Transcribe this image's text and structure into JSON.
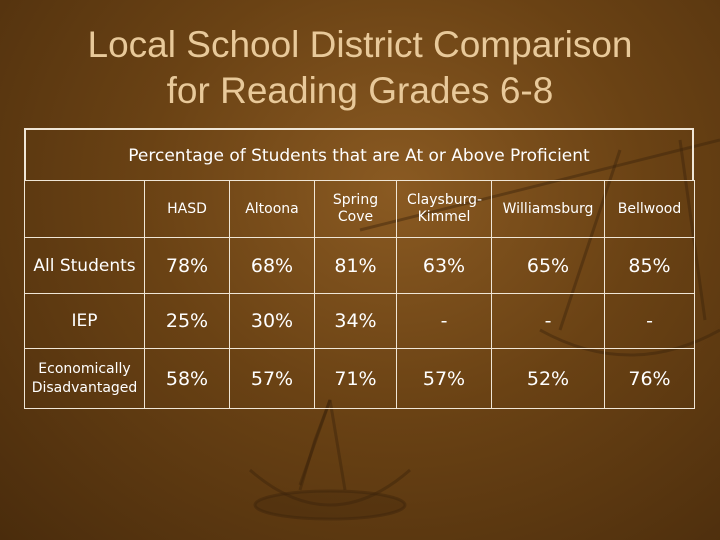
{
  "slide": {
    "title_line1": "Local School District Comparison",
    "title_line2": "for Reading Grades 6-8"
  },
  "table": {
    "caption": "Percentage of Students that are At or Above Proficient",
    "corner": "",
    "columns": [
      "HASD",
      "Altoona",
      "Spring Cove",
      "Claysburg-Kimmel",
      "Williamsburg",
      "Bellwood"
    ],
    "rows": [
      {
        "label": "All Students",
        "values": [
          "78%",
          "68%",
          "81%",
          "63%",
          "65%",
          "85%"
        ]
      },
      {
        "label": "IEP",
        "values": [
          "25%",
          "30%",
          "34%",
          "-",
          "-",
          "-"
        ]
      },
      {
        "label": "Economically Disadvantaged",
        "values": [
          "58%",
          "57%",
          "71%",
          "57%",
          "52%",
          "76%"
        ]
      }
    ]
  },
  "colors": {
    "background": "#6a4214",
    "title": "#e8c99a",
    "text": "#ffffff",
    "rules": "#f0e6d6"
  },
  "decoration": {
    "background_image": "balance-scale-icon"
  }
}
